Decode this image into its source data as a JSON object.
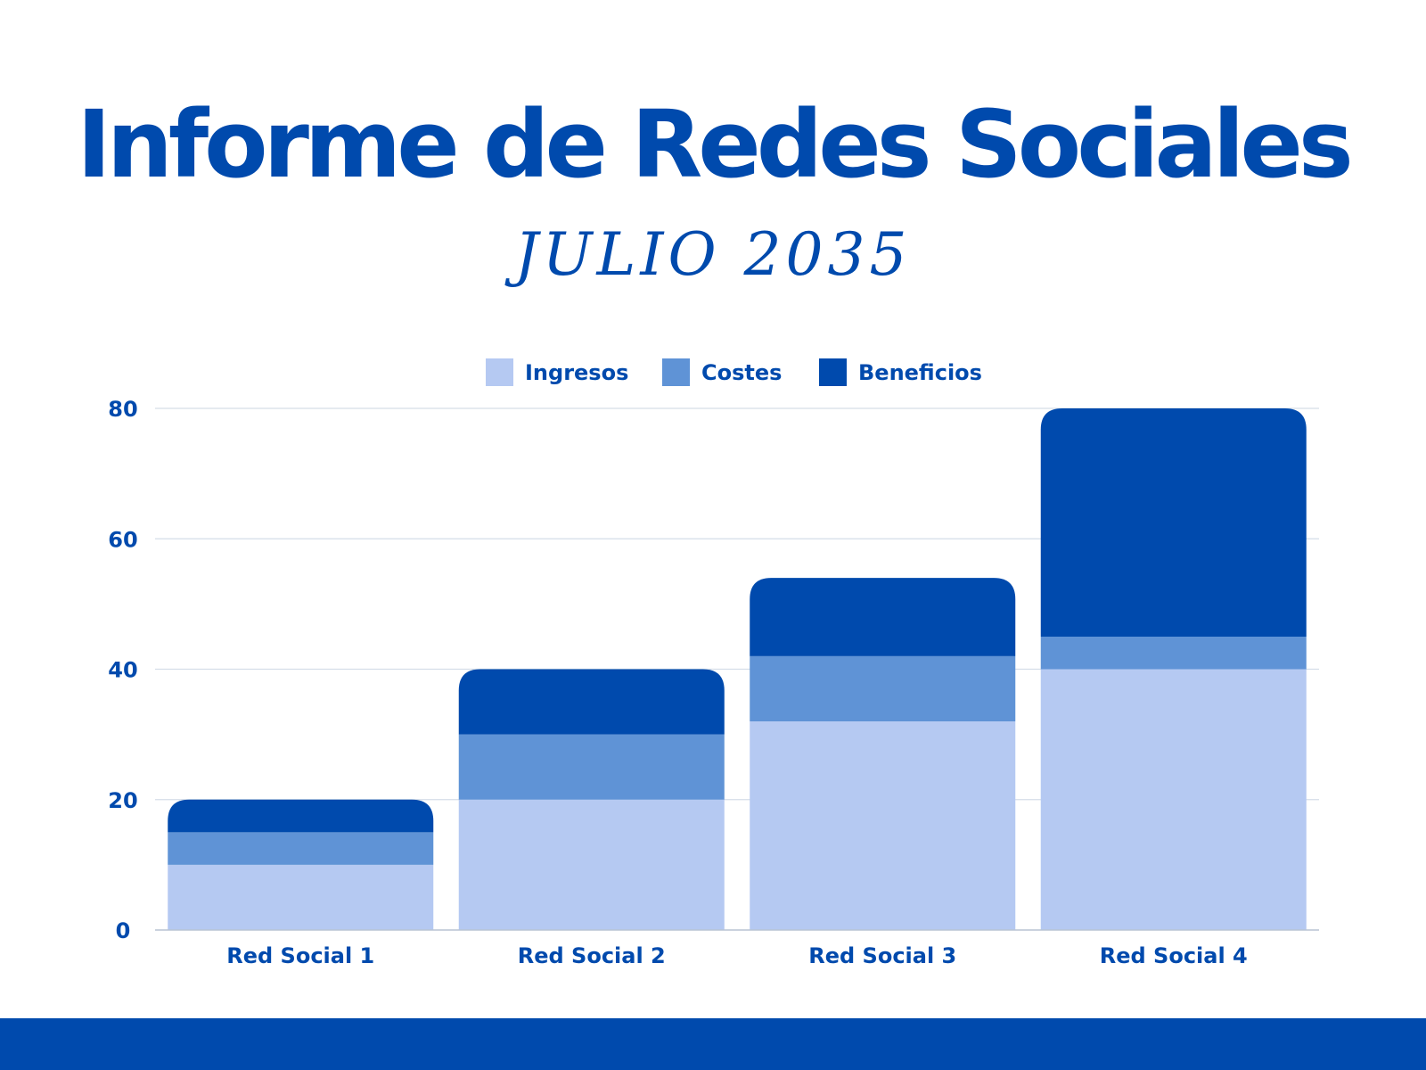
{
  "header": {
    "title": "Informe de Redes Sociales",
    "subtitle": "JULIO 2035"
  },
  "colors": {
    "accent": "#004aad",
    "ingresos": "#b5c9f2",
    "costes": "#5f93d6",
    "beneficios": "#004aad",
    "grid": "#d5dde8",
    "axis": "#b8c4d4"
  },
  "chart_data": {
    "type": "bar",
    "stacked": true,
    "title": "",
    "xlabel": "",
    "ylabel": "",
    "categories": [
      "Red Social 1",
      "Red Social 2",
      "Red Social 3",
      "Red Social 4"
    ],
    "series": [
      {
        "name": "Ingresos",
        "values": [
          10,
          20,
          32,
          40
        ]
      },
      {
        "name": "Costes",
        "values": [
          5,
          10,
          10,
          5
        ]
      },
      {
        "name": "Beneficios",
        "values": [
          5,
          10,
          12,
          35
        ]
      }
    ],
    "ylim": [
      0,
      80
    ],
    "yticks": [
      0,
      20,
      40,
      60,
      80
    ],
    "grid": true,
    "legend": "top-center"
  }
}
